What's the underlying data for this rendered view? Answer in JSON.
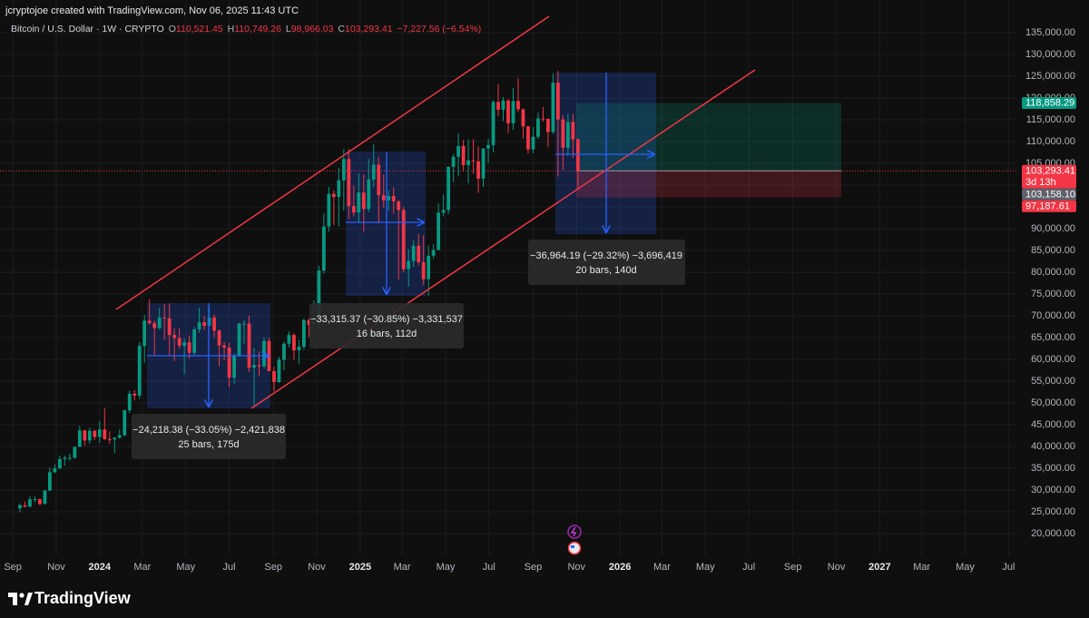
{
  "chart_data": {
    "type": "candlestick",
    "credit": "jcryptojoe created with TradingView.com, Nov 06, 2025 11:43 UTC",
    "symbol": "Bitcoin / U.S. Dollar · 1W · CRYPTO",
    "ohlc_names": [
      "O",
      "H",
      "L",
      "C"
    ],
    "ohlc_labels": [
      "110,521.45",
      "110,749.26",
      "98,966.03",
      "103,293.41"
    ],
    "change_label": "−7,227.56 (−6.54%)",
    "brand": "TradingView",
    "up_color": "#089981",
    "down_color": "#f23645",
    "grid": true,
    "xlim": [
      -4,
      200
    ],
    "ylim": [
      15000,
      142500
    ],
    "xticks": [
      {
        "value": -1.43,
        "label": "Sep"
      },
      {
        "value": 7.29,
        "label": "Nov"
      },
      {
        "value": 16.0,
        "label": "2024"
      },
      {
        "value": 24.57,
        "label": "Mar"
      },
      {
        "value": 33.29,
        "label": "May"
      },
      {
        "value": 42.0,
        "label": "Jul"
      },
      {
        "value": 50.86,
        "label": "Sep"
      },
      {
        "value": 59.57,
        "label": "Nov"
      },
      {
        "value": 68.29,
        "label": "2025"
      },
      {
        "value": 76.71,
        "label": "Mar"
      },
      {
        "value": 85.43,
        "label": "May"
      },
      {
        "value": 94.14,
        "label": "Jul"
      },
      {
        "value": 103.0,
        "label": "Sep"
      },
      {
        "value": 111.71,
        "label": "Nov"
      },
      {
        "value": 120.43,
        "label": "2026"
      },
      {
        "value": 128.86,
        "label": "Mar"
      },
      {
        "value": 137.57,
        "label": "May"
      },
      {
        "value": 146.29,
        "label": "Jul"
      },
      {
        "value": 155.14,
        "label": "Sep"
      },
      {
        "value": 163.86,
        "label": "Nov"
      },
      {
        "value": 172.57,
        "label": "2027"
      },
      {
        "value": 181.0,
        "label": "Mar"
      },
      {
        "value": 189.71,
        "label": "May"
      },
      {
        "value": 198.43,
        "label": "Jul"
      }
    ],
    "yticks": [
      {
        "value": 20000,
        "label": "20,000.00"
      },
      {
        "value": 25000,
        "label": "25,000.00"
      },
      {
        "value": 30000,
        "label": "30,000.00"
      },
      {
        "value": 35000,
        "label": "35,000.00"
      },
      {
        "value": 40000,
        "label": "40,000.00"
      },
      {
        "value": 45000,
        "label": "45,000.00"
      },
      {
        "value": 50000,
        "label": "50,000.00"
      },
      {
        "value": 55000,
        "label": "55,000.00"
      },
      {
        "value": 60000,
        "label": "60,000.00"
      },
      {
        "value": 65000,
        "label": "65,000.00"
      },
      {
        "value": 70000,
        "label": "70,000.00"
      },
      {
        "value": 75000,
        "label": "75,000.00"
      },
      {
        "value": 80000,
        "label": "80,000.00"
      },
      {
        "value": 85000,
        "label": "85,000.00"
      },
      {
        "value": 90000,
        "label": "90,000.00"
      },
      {
        "value": 95000,
        "label": "95,000.00"
      },
      {
        "value": 100000,
        "label": "100,000.00"
      },
      {
        "value": 105000,
        "label": "105,000.00"
      },
      {
        "value": 110000,
        "label": "110,000.00"
      },
      {
        "value": 115000,
        "label": "115,000.00"
      },
      {
        "value": 120000,
        "label": "120,000.00"
      },
      {
        "value": 125000,
        "label": "125,000.00"
      },
      {
        "value": 130000,
        "label": "130,000.00"
      },
      {
        "value": 135000,
        "label": "135,000.00"
      }
    ],
    "price_labels": [
      {
        "value": 118858.29,
        "label": "118,858.29",
        "color": "#089981"
      },
      {
        "value": 103293.41,
        "label": "103,293.41",
        "color": "#f23645",
        "note": "3d 13h"
      },
      {
        "value": 103158.1,
        "label": "103,158.10",
        "color": "#5d606b"
      },
      {
        "value": 97187.61,
        "label": "97,187.61",
        "color": "#f23645"
      }
    ],
    "measures": [
      {
        "label": "−24,218.38 (−33.05%) −2,421,838",
        "detail": "25 bars, 175d"
      },
      {
        "label": "−33,315.37 (−30.85%) −3,331,537",
        "detail": "16 bars, 112d"
      },
      {
        "label": "−36,964.19 (−29.32%) −3,696,419",
        "detail": "20 bars, 140d"
      }
    ],
    "candles": [
      [
        25800,
        26900,
        24900,
        26500
      ],
      [
        26500,
        27400,
        26000,
        26200
      ],
      [
        26200,
        28600,
        26000,
        27900
      ],
      [
        27900,
        28600,
        27200,
        27900
      ],
      [
        27900,
        28000,
        26500,
        26800
      ],
      [
        26800,
        30000,
        26800,
        29900
      ],
      [
        29900,
        35200,
        29700,
        34100
      ],
      [
        34100,
        35900,
        33900,
        35000
      ],
      [
        35000,
        37900,
        34700,
        37100
      ],
      [
        37100,
        37900,
        35600,
        37400
      ],
      [
        37400,
        38400,
        36700,
        37400
      ],
      [
        37400,
        40000,
        37200,
        39900
      ],
      [
        39900,
        44700,
        39900,
        43700
      ],
      [
        43700,
        43800,
        40200,
        41400
      ],
      [
        41400,
        44300,
        40600,
        43600
      ],
      [
        43600,
        43800,
        41500,
        42200
      ],
      [
        42200,
        45900,
        40800,
        43900
      ],
      [
        43900,
        48900,
        41500,
        41700
      ],
      [
        41700,
        43500,
        40600,
        41600
      ],
      [
        41600,
        42200,
        38500,
        42000
      ],
      [
        42000,
        43900,
        41800,
        42600
      ],
      [
        42600,
        48500,
        42300,
        48300
      ],
      [
        48300,
        52800,
        47700,
        52100
      ],
      [
        52100,
        52900,
        50600,
        51700
      ],
      [
        51700,
        64000,
        50900,
        63100
      ],
      [
        63100,
        70200,
        59100,
        68900
      ],
      [
        68900,
        73800,
        68000,
        68300
      ],
      [
        68300,
        68900,
        60800,
        67200
      ],
      [
        67200,
        71800,
        66800,
        69600
      ],
      [
        69600,
        72700,
        64500,
        69400
      ],
      [
        69400,
        72800,
        60700,
        65600
      ],
      [
        65600,
        67200,
        59600,
        64900
      ],
      [
        64900,
        67100,
        62400,
        63100
      ],
      [
        63100,
        64800,
        56600,
        63900
      ],
      [
        63900,
        65500,
        60200,
        61500
      ],
      [
        61500,
        67400,
        60700,
        66900
      ],
      [
        66900,
        71900,
        66100,
        68500
      ],
      [
        68500,
        70000,
        66700,
        67700
      ],
      [
        67700,
        72000,
        67600,
        69600
      ],
      [
        69600,
        70300,
        65000,
        66600
      ],
      [
        66600,
        66900,
        58400,
        63200
      ],
      [
        63200,
        64000,
        59800,
        62700
      ],
      [
        62700,
        63800,
        53600,
        55800
      ],
      [
        55800,
        61400,
        54300,
        60800
      ],
      [
        60800,
        68400,
        60600,
        68200
      ],
      [
        68200,
        69000,
        63500,
        68200
      ],
      [
        68200,
        70000,
        57200,
        58100
      ],
      [
        58100,
        62700,
        49100,
        58700
      ],
      [
        58700,
        61800,
        56200,
        58400
      ],
      [
        58400,
        65000,
        57800,
        64200
      ],
      [
        64200,
        64900,
        57300,
        57300
      ],
      [
        57300,
        58300,
        52600,
        54800
      ],
      [
        54800,
        60600,
        54600,
        59900
      ],
      [
        59900,
        64100,
        57500,
        63600
      ],
      [
        63600,
        66400,
        62700,
        65600
      ],
      [
        65600,
        66000,
        59900,
        62100
      ],
      [
        62100,
        64400,
        58900,
        62900
      ],
      [
        62900,
        69400,
        62200,
        69000
      ],
      [
        69000,
        69500,
        65100,
        67900
      ],
      [
        67900,
        73600,
        67500,
        68800
      ],
      [
        68800,
        81500,
        66800,
        80400
      ],
      [
        80400,
        93500,
        79700,
        90500
      ],
      [
        90500,
        99600,
        89300,
        98000
      ],
      [
        98000,
        98800,
        90800,
        97300
      ],
      [
        97300,
        104000,
        90500,
        101100
      ],
      [
        101100,
        108300,
        94200,
        106000
      ],
      [
        106000,
        108300,
        92200,
        95200
      ],
      [
        95200,
        99900,
        92800,
        93700
      ],
      [
        93700,
        102700,
        91300,
        98300
      ],
      [
        98300,
        102500,
        89300,
        94500
      ],
      [
        94500,
        106000,
        93800,
        101300
      ],
      [
        101300,
        109400,
        99500,
        104700
      ],
      [
        104700,
        106500,
        91200,
        97700
      ],
      [
        97700,
        102500,
        94800,
        96500
      ],
      [
        96500,
        98800,
        94100,
        97500
      ],
      [
        97500,
        99500,
        93400,
        96300
      ],
      [
        96300,
        96500,
        78300,
        94300
      ],
      [
        94300,
        95000,
        80000,
        80700
      ],
      [
        80700,
        85300,
        76700,
        82600
      ],
      [
        82600,
        87400,
        81200,
        86100
      ],
      [
        86100,
        88800,
        81600,
        82300
      ],
      [
        82300,
        88500,
        77100,
        78400
      ],
      [
        78400,
        86100,
        74500,
        83800
      ],
      [
        83800,
        86400,
        83100,
        85100
      ],
      [
        85100,
        95800,
        85100,
        93700
      ],
      [
        93700,
        97900,
        92800,
        94300
      ],
      [
        94300,
        104300,
        93400,
        104200
      ],
      [
        104200,
        107100,
        100700,
        106500
      ],
      [
        106500,
        111900,
        102000,
        109000
      ],
      [
        109000,
        110400,
        103100,
        104600
      ],
      [
        104600,
        110500,
        100400,
        105700
      ],
      [
        105700,
        110500,
        102600,
        105500
      ],
      [
        105500,
        108900,
        98200,
        101500
      ],
      [
        101500,
        108500,
        99600,
        108400
      ],
      [
        108400,
        110600,
        105100,
        109200
      ],
      [
        109200,
        119500,
        107500,
        119100
      ],
      [
        119100,
        123200,
        115800,
        117300
      ],
      [
        117300,
        120200,
        114700,
        119400
      ],
      [
        119400,
        119800,
        112000,
        114200
      ],
      [
        114200,
        122300,
        112700,
        119300
      ],
      [
        119300,
        124500,
        116800,
        117400
      ],
      [
        117400,
        117600,
        110700,
        113500
      ],
      [
        113500,
        113600,
        107300,
        108200
      ],
      [
        108200,
        113400,
        107300,
        111100
      ],
      [
        111100,
        116700,
        110600,
        115300
      ],
      [
        115300,
        117900,
        114600,
        115200
      ],
      [
        115200,
        115400,
        108700,
        112200
      ],
      [
        112200,
        125700,
        111700,
        123500
      ],
      [
        123500,
        126200,
        102000,
        115100
      ],
      [
        115100,
        116100,
        103500,
        108600
      ],
      [
        108600,
        116400,
        106700,
        114500
      ],
      [
        114500,
        116400,
        106300,
        110500
      ],
      [
        110521.45,
        110749.26,
        98966.03,
        103293.41
      ]
    ]
  }
}
